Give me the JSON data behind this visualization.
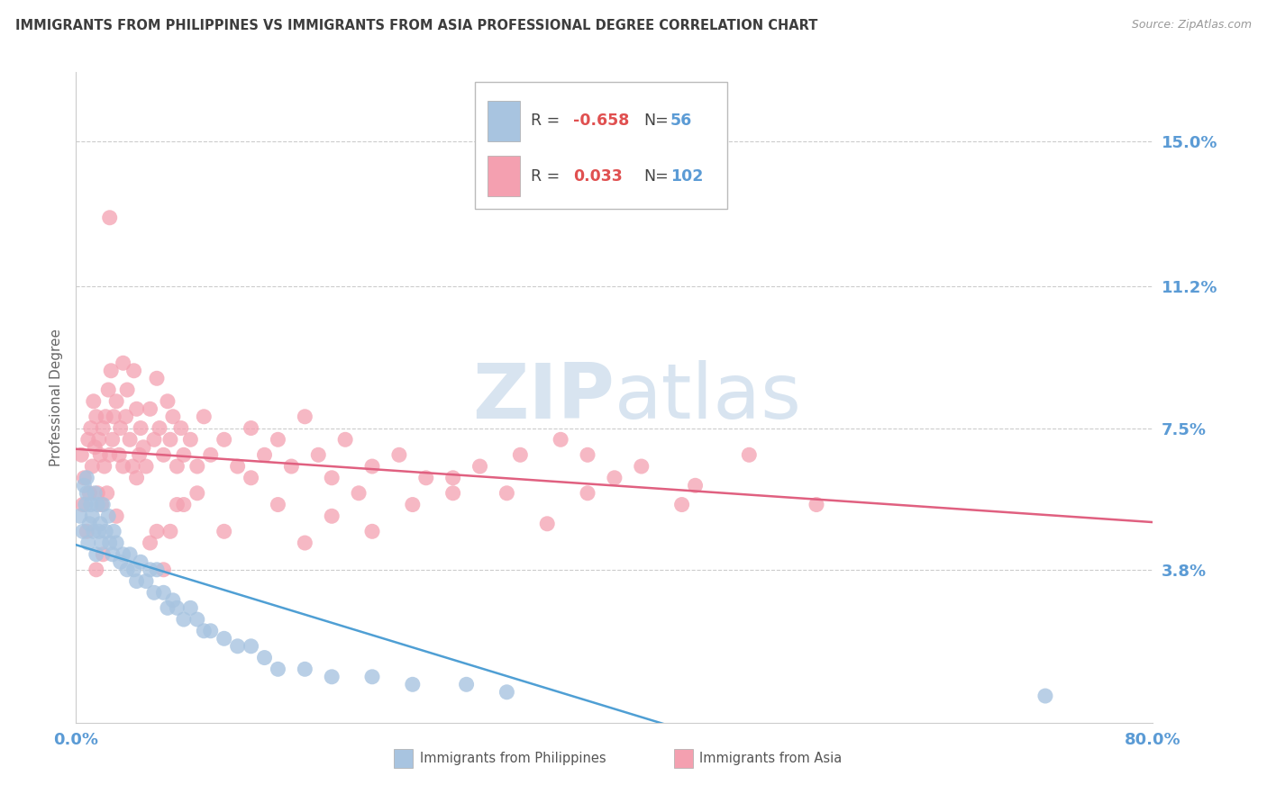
{
  "title": "IMMIGRANTS FROM PHILIPPINES VS IMMIGRANTS FROM ASIA PROFESSIONAL DEGREE CORRELATION CHART",
  "source": "Source: ZipAtlas.com",
  "ylabel": "Professional Degree",
  "ytick_labels": [
    "3.8%",
    "7.5%",
    "11.2%",
    "15.0%"
  ],
  "ytick_values": [
    0.038,
    0.075,
    0.112,
    0.15
  ],
  "xlim": [
    0.0,
    0.8
  ],
  "ylim": [
    -0.002,
    0.168
  ],
  "color_philippines": "#a8c4e0",
  "color_asia": "#f4a0b0",
  "color_philippines_line": "#4f9fd4",
  "color_asia_line": "#e06080",
  "color_axis_labels": "#5b9bd5",
  "color_title": "#3d3d3d",
  "color_r_value": "#e05050",
  "color_source": "#999999",
  "watermark_color": "#d8e4f0",
  "background_color": "#ffffff",
  "grid_color": "#cccccc",
  "legend_r1": "-0.658",
  "legend_n1": "56",
  "legend_r2": "0.033",
  "legend_n2": "102",
  "philippines_x": [
    0.003,
    0.005,
    0.006,
    0.007,
    0.008,
    0.008,
    0.009,
    0.01,
    0.011,
    0.012,
    0.013,
    0.014,
    0.015,
    0.016,
    0.017,
    0.018,
    0.019,
    0.02,
    0.022,
    0.024,
    0.025,
    0.027,
    0.028,
    0.03,
    0.033,
    0.035,
    0.038,
    0.04,
    0.043,
    0.045,
    0.048,
    0.052,
    0.055,
    0.058,
    0.06,
    0.065,
    0.068,
    0.072,
    0.075,
    0.08,
    0.085,
    0.09,
    0.095,
    0.1,
    0.11,
    0.12,
    0.13,
    0.14,
    0.15,
    0.17,
    0.19,
    0.22,
    0.25,
    0.29,
    0.32,
    0.72
  ],
  "philippines_y": [
    0.052,
    0.048,
    0.06,
    0.055,
    0.058,
    0.062,
    0.045,
    0.05,
    0.055,
    0.052,
    0.048,
    0.058,
    0.042,
    0.055,
    0.048,
    0.05,
    0.045,
    0.055,
    0.048,
    0.052,
    0.045,
    0.042,
    0.048,
    0.045,
    0.04,
    0.042,
    0.038,
    0.042,
    0.038,
    0.035,
    0.04,
    0.035,
    0.038,
    0.032,
    0.038,
    0.032,
    0.028,
    0.03,
    0.028,
    0.025,
    0.028,
    0.025,
    0.022,
    0.022,
    0.02,
    0.018,
    0.018,
    0.015,
    0.012,
    0.012,
    0.01,
    0.01,
    0.008,
    0.008,
    0.006,
    0.005
  ],
  "asia_x": [
    0.004,
    0.005,
    0.006,
    0.008,
    0.009,
    0.01,
    0.011,
    0.012,
    0.013,
    0.014,
    0.015,
    0.016,
    0.017,
    0.018,
    0.019,
    0.02,
    0.021,
    0.022,
    0.023,
    0.024,
    0.025,
    0.026,
    0.027,
    0.028,
    0.03,
    0.032,
    0.033,
    0.035,
    0.037,
    0.038,
    0.04,
    0.042,
    0.043,
    0.045,
    0.047,
    0.048,
    0.05,
    0.052,
    0.055,
    0.058,
    0.06,
    0.062,
    0.065,
    0.068,
    0.07,
    0.072,
    0.075,
    0.078,
    0.08,
    0.085,
    0.09,
    0.095,
    0.1,
    0.11,
    0.12,
    0.13,
    0.14,
    0.15,
    0.16,
    0.17,
    0.18,
    0.19,
    0.2,
    0.21,
    0.22,
    0.24,
    0.26,
    0.28,
    0.3,
    0.33,
    0.36,
    0.38,
    0.42,
    0.46,
    0.5,
    0.55,
    0.35,
    0.4,
    0.45,
    0.38,
    0.32,
    0.28,
    0.25,
    0.22,
    0.19,
    0.17,
    0.15,
    0.13,
    0.11,
    0.09,
    0.075,
    0.06,
    0.045,
    0.03,
    0.02,
    0.015,
    0.025,
    0.035,
    0.055,
    0.065,
    0.07,
    0.08
  ],
  "asia_y": [
    0.068,
    0.055,
    0.062,
    0.048,
    0.072,
    0.058,
    0.075,
    0.065,
    0.082,
    0.07,
    0.078,
    0.058,
    0.072,
    0.068,
    0.055,
    0.075,
    0.065,
    0.078,
    0.058,
    0.085,
    0.068,
    0.09,
    0.072,
    0.078,
    0.082,
    0.068,
    0.075,
    0.065,
    0.078,
    0.085,
    0.072,
    0.065,
    0.09,
    0.08,
    0.068,
    0.075,
    0.07,
    0.065,
    0.08,
    0.072,
    0.088,
    0.075,
    0.068,
    0.082,
    0.072,
    0.078,
    0.065,
    0.075,
    0.068,
    0.072,
    0.065,
    0.078,
    0.068,
    0.072,
    0.065,
    0.075,
    0.068,
    0.072,
    0.065,
    0.078,
    0.068,
    0.062,
    0.072,
    0.058,
    0.065,
    0.068,
    0.062,
    0.058,
    0.065,
    0.068,
    0.072,
    0.058,
    0.065,
    0.06,
    0.068,
    0.055,
    0.05,
    0.062,
    0.055,
    0.068,
    0.058,
    0.062,
    0.055,
    0.048,
    0.052,
    0.045,
    0.055,
    0.062,
    0.048,
    0.058,
    0.055,
    0.048,
    0.062,
    0.052,
    0.042,
    0.038,
    0.13,
    0.092,
    0.045,
    0.038,
    0.048,
    0.055
  ]
}
